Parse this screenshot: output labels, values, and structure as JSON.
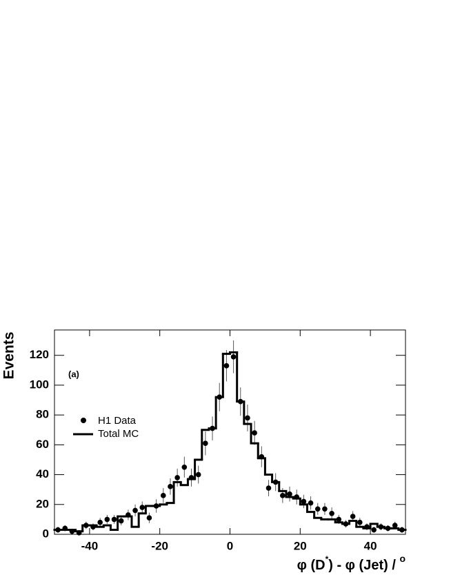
{
  "chart_data": {
    "type": "histogram",
    "ylabel": "Events",
    "xlabel_parts": [
      "φ (D",
      "*",
      ") - φ (Jet) / ",
      "o"
    ],
    "annotation": "(a)",
    "bins": [
      -50,
      -48,
      -46,
      -44,
      -42,
      -40,
      -38,
      -36,
      -34,
      -32,
      -30,
      -28,
      -26,
      -24,
      -22,
      -20,
      -18,
      -16,
      -14,
      -12,
      -10,
      -8,
      -6,
      -4,
      -2,
      0,
      2,
      4,
      6,
      8,
      10,
      12,
      14,
      16,
      18,
      20,
      22,
      24,
      26,
      28,
      30,
      32,
      34,
      36,
      38,
      40,
      42,
      44,
      46,
      48,
      50
    ],
    "series": [
      {
        "name": "H1 Data",
        "color": "#000000",
        "style": "points",
        "values": [
          3,
          4,
          2,
          1,
          6,
          5,
          8,
          10,
          10,
          9,
          13,
          16,
          18,
          11,
          19,
          26,
          32,
          38,
          45,
          38,
          40,
          61,
          71,
          92,
          113,
          119,
          89,
          78,
          68,
          52,
          31,
          35,
          26,
          27,
          25,
          22,
          21,
          17,
          17,
          14,
          10,
          7,
          12,
          8,
          5,
          3,
          5,
          4,
          6,
          3
        ],
        "errors": [
          2,
          2,
          1.5,
          1,
          2.5,
          2.3,
          3,
          3,
          3,
          3,
          3.5,
          4,
          4,
          3.5,
          4.5,
          5,
          5.5,
          6,
          7,
          6,
          6,
          8,
          8,
          9.5,
          10.5,
          11,
          9.5,
          9,
          8,
          7,
          5.5,
          6,
          5,
          5,
          5,
          4.5,
          4.5,
          4,
          4,
          4,
          3,
          2.5,
          3.5,
          3,
          2.3,
          2,
          2.3,
          2,
          2.5,
          2
        ]
      },
      {
        "name": "Total MC",
        "color": "#000000",
        "style": "step",
        "values": [
          3,
          3,
          3,
          2,
          6,
          6,
          5,
          6,
          3,
          12,
          12,
          5,
          14,
          19,
          19,
          20,
          21,
          35,
          33,
          37,
          50,
          70,
          71,
          92,
          121,
          122,
          89,
          74,
          61,
          51,
          40,
          35,
          29,
          25,
          24,
          20,
          15,
          11,
          10,
          10,
          8,
          7,
          9,
          5,
          4,
          7,
          5,
          4,
          4,
          3
        ]
      }
    ],
    "xlim": [
      -50,
      50
    ],
    "ylim": [
      0,
      137
    ],
    "xticks": [
      -40,
      -20,
      0,
      20,
      40
    ],
    "yticks": [
      0,
      20,
      40,
      60,
      80,
      100,
      120
    ]
  }
}
